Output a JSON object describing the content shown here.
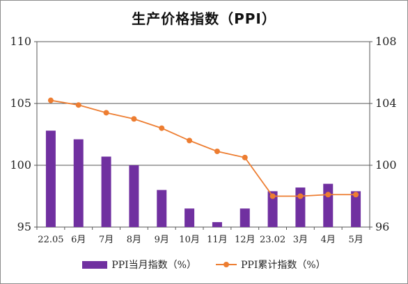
{
  "chart_data": {
    "type": "bar+line",
    "title": "生产价格指数（PPI）",
    "categories": [
      "22.05",
      "6月",
      "7月",
      "8月",
      "9月",
      "10月",
      "11月",
      "12月",
      "23.02",
      "3月",
      "4月",
      "5月"
    ],
    "series": [
      {
        "name": "PPI当月指数（%）",
        "type": "bar",
        "axis": "left",
        "color": "#7030a0",
        "values": [
          102.8,
          102.1,
          100.7,
          100.0,
          98.0,
          96.5,
          95.4,
          96.5,
          97.9,
          98.2,
          98.5,
          97.9
        ]
      },
      {
        "name": "PPI累计指数（%）",
        "type": "line",
        "axis": "right",
        "color": "#ed7d31",
        "values": [
          104.2,
          103.9,
          103.4,
          103.0,
          102.4,
          101.6,
          100.9,
          100.5,
          98.0,
          98.0,
          98.1,
          98.1
        ]
      }
    ],
    "y_left": {
      "min": 95,
      "max": 110,
      "ticks": [
        95,
        100,
        105,
        110
      ]
    },
    "y_right": {
      "min": 96,
      "max": 108,
      "ticks": [
        96,
        100,
        104,
        108
      ]
    },
    "grid": true,
    "legend_position": "bottom"
  }
}
